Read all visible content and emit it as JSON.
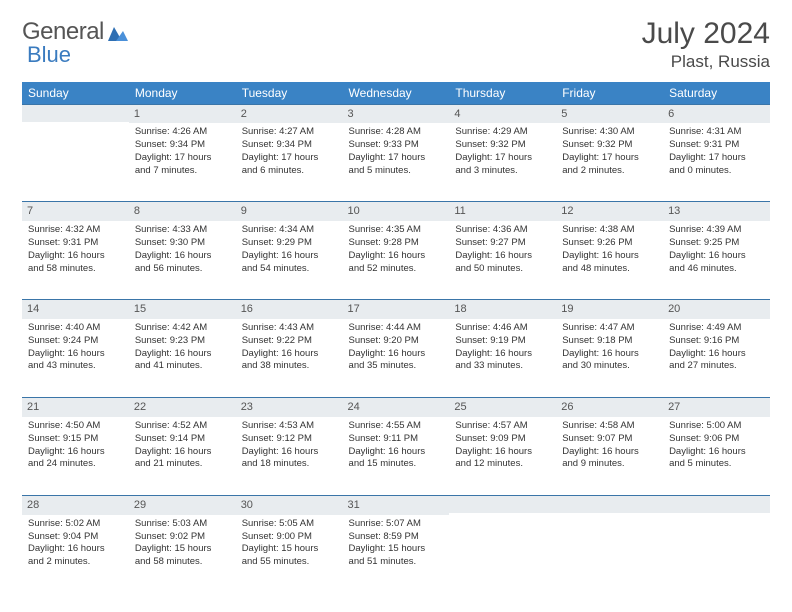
{
  "logo": {
    "part1": "General",
    "part2": "Blue"
  },
  "title": "July 2024",
  "location": "Plast, Russia",
  "colors": {
    "header_bg": "#3a83c5",
    "header_text": "#ffffff",
    "daynum_bg": "#e8ecef",
    "daynum_border": "#3a75a8",
    "body_text": "#333333",
    "title_text": "#4a4a4a",
    "logo_accent": "#3a7bbf"
  },
  "weekdays": [
    "Sunday",
    "Monday",
    "Tuesday",
    "Wednesday",
    "Thursday",
    "Friday",
    "Saturday"
  ],
  "weeks": [
    [
      null,
      {
        "n": "1",
        "sr": "4:26 AM",
        "ss": "9:34 PM",
        "dl": "17 hours and 7 minutes."
      },
      {
        "n": "2",
        "sr": "4:27 AM",
        "ss": "9:34 PM",
        "dl": "17 hours and 6 minutes."
      },
      {
        "n": "3",
        "sr": "4:28 AM",
        "ss": "9:33 PM",
        "dl": "17 hours and 5 minutes."
      },
      {
        "n": "4",
        "sr": "4:29 AM",
        "ss": "9:32 PM",
        "dl": "17 hours and 3 minutes."
      },
      {
        "n": "5",
        "sr": "4:30 AM",
        "ss": "9:32 PM",
        "dl": "17 hours and 2 minutes."
      },
      {
        "n": "6",
        "sr": "4:31 AM",
        "ss": "9:31 PM",
        "dl": "17 hours and 0 minutes."
      }
    ],
    [
      {
        "n": "7",
        "sr": "4:32 AM",
        "ss": "9:31 PM",
        "dl": "16 hours and 58 minutes."
      },
      {
        "n": "8",
        "sr": "4:33 AM",
        "ss": "9:30 PM",
        "dl": "16 hours and 56 minutes."
      },
      {
        "n": "9",
        "sr": "4:34 AM",
        "ss": "9:29 PM",
        "dl": "16 hours and 54 minutes."
      },
      {
        "n": "10",
        "sr": "4:35 AM",
        "ss": "9:28 PM",
        "dl": "16 hours and 52 minutes."
      },
      {
        "n": "11",
        "sr": "4:36 AM",
        "ss": "9:27 PM",
        "dl": "16 hours and 50 minutes."
      },
      {
        "n": "12",
        "sr": "4:38 AM",
        "ss": "9:26 PM",
        "dl": "16 hours and 48 minutes."
      },
      {
        "n": "13",
        "sr": "4:39 AM",
        "ss": "9:25 PM",
        "dl": "16 hours and 46 minutes."
      }
    ],
    [
      {
        "n": "14",
        "sr": "4:40 AM",
        "ss": "9:24 PM",
        "dl": "16 hours and 43 minutes."
      },
      {
        "n": "15",
        "sr": "4:42 AM",
        "ss": "9:23 PM",
        "dl": "16 hours and 41 minutes."
      },
      {
        "n": "16",
        "sr": "4:43 AM",
        "ss": "9:22 PM",
        "dl": "16 hours and 38 minutes."
      },
      {
        "n": "17",
        "sr": "4:44 AM",
        "ss": "9:20 PM",
        "dl": "16 hours and 35 minutes."
      },
      {
        "n": "18",
        "sr": "4:46 AM",
        "ss": "9:19 PM",
        "dl": "16 hours and 33 minutes."
      },
      {
        "n": "19",
        "sr": "4:47 AM",
        "ss": "9:18 PM",
        "dl": "16 hours and 30 minutes."
      },
      {
        "n": "20",
        "sr": "4:49 AM",
        "ss": "9:16 PM",
        "dl": "16 hours and 27 minutes."
      }
    ],
    [
      {
        "n": "21",
        "sr": "4:50 AM",
        "ss": "9:15 PM",
        "dl": "16 hours and 24 minutes."
      },
      {
        "n": "22",
        "sr": "4:52 AM",
        "ss": "9:14 PM",
        "dl": "16 hours and 21 minutes."
      },
      {
        "n": "23",
        "sr": "4:53 AM",
        "ss": "9:12 PM",
        "dl": "16 hours and 18 minutes."
      },
      {
        "n": "24",
        "sr": "4:55 AM",
        "ss": "9:11 PM",
        "dl": "16 hours and 15 minutes."
      },
      {
        "n": "25",
        "sr": "4:57 AM",
        "ss": "9:09 PM",
        "dl": "16 hours and 12 minutes."
      },
      {
        "n": "26",
        "sr": "4:58 AM",
        "ss": "9:07 PM",
        "dl": "16 hours and 9 minutes."
      },
      {
        "n": "27",
        "sr": "5:00 AM",
        "ss": "9:06 PM",
        "dl": "16 hours and 5 minutes."
      }
    ],
    [
      {
        "n": "28",
        "sr": "5:02 AM",
        "ss": "9:04 PM",
        "dl": "16 hours and 2 minutes."
      },
      {
        "n": "29",
        "sr": "5:03 AM",
        "ss": "9:02 PM",
        "dl": "15 hours and 58 minutes."
      },
      {
        "n": "30",
        "sr": "5:05 AM",
        "ss": "9:00 PM",
        "dl": "15 hours and 55 minutes."
      },
      {
        "n": "31",
        "sr": "5:07 AM",
        "ss": "8:59 PM",
        "dl": "15 hours and 51 minutes."
      },
      null,
      null,
      null
    ]
  ],
  "labels": {
    "sunrise": "Sunrise:",
    "sunset": "Sunset:",
    "daylight": "Daylight:"
  }
}
